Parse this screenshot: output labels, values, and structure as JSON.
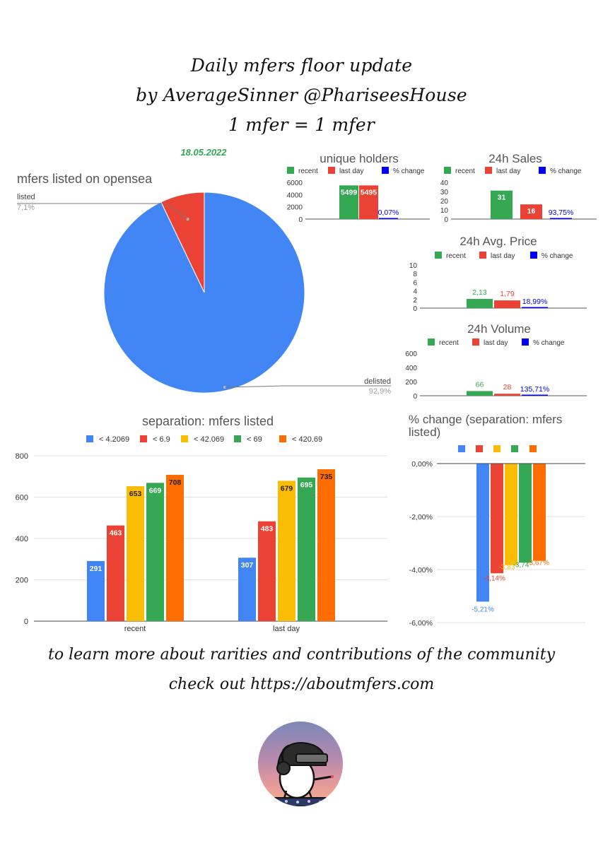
{
  "header": {
    "line1": "Daily mfers floor update",
    "line2": "by AverageSinner @PhariseesHouse",
    "line3": "1 mfer = 1 mfer"
  },
  "date": "18.05.2022",
  "footer": {
    "line1": "to learn more about rarities and contributions of the community",
    "line2": "check out https://aboutmfers.com"
  },
  "colors": {
    "blue": "#4285f4",
    "red": "#ea4335",
    "yellow": "#fbbc04",
    "green": "#34a853",
    "orange": "#ff6d01",
    "pct_blue": "#0000ee",
    "grey_text": "#9e9e9e"
  },
  "chart_data": [
    {
      "id": "pie",
      "type": "pie",
      "title": "mfers listed on opensea",
      "slices": [
        {
          "label": "listed",
          "pct_label": "7,1%",
          "value": 7.1,
          "color": "#ea4335"
        },
        {
          "label": "delisted",
          "pct_label": "92,9%",
          "value": 92.9,
          "color": "#4285f4"
        }
      ]
    },
    {
      "id": "holders",
      "type": "bar",
      "title": "unique holders",
      "legend": [
        "recent",
        "last day",
        "% change"
      ],
      "yticks": [
        0,
        2000,
        4000,
        6000
      ],
      "ylim": [
        0,
        6000
      ],
      "values": [
        5499,
        5495,
        0.07
      ],
      "labels": [
        "5499",
        "5495",
        "0,07%"
      ],
      "colors": [
        "#34a853",
        "#ea4335",
        "#0000ee"
      ]
    },
    {
      "id": "sales",
      "type": "bar",
      "title": "24h Sales",
      "legend": [
        "recent",
        "last day",
        "% change"
      ],
      "yticks": [
        0,
        10,
        20,
        30,
        40
      ],
      "ylim": [
        0,
        40
      ],
      "values": [
        31,
        16,
        0.9375
      ],
      "labels": [
        "31",
        "16",
        "93,75%"
      ],
      "colors": [
        "#34a853",
        "#ea4335",
        "#0000ee"
      ]
    },
    {
      "id": "avgprice",
      "type": "bar",
      "title": "24h Avg. Price",
      "legend": [
        "recent",
        "last day",
        "% change"
      ],
      "yticks": [
        0,
        2,
        4,
        6,
        8,
        10
      ],
      "ylim": [
        0,
        10
      ],
      "values": [
        2.13,
        1.79,
        0.1899
      ],
      "labels": [
        "2,13",
        "1,79",
        "18,99%"
      ],
      "colors": [
        "#34a853",
        "#ea4335",
        "#0000ee"
      ]
    },
    {
      "id": "volume",
      "type": "bar",
      "title": "24h Volume",
      "legend": [
        "recent",
        "last day",
        "% change"
      ],
      "yticks": [
        0,
        200,
        400,
        600
      ],
      "ylim": [
        0,
        600
      ],
      "values": [
        66,
        28,
        1.3571
      ],
      "labels": [
        "66",
        "28",
        "135,71%"
      ],
      "colors": [
        "#34a853",
        "#ea4335",
        "#0000ee"
      ]
    },
    {
      "id": "separation",
      "type": "bar",
      "title": "separation: mfers listed",
      "categories": [
        "recent",
        "last day"
      ],
      "yticks": [
        0,
        200,
        400,
        600,
        800
      ],
      "ylim": [
        0,
        800
      ],
      "series": [
        {
          "name": "< 4.2069",
          "values": [
            291,
            307
          ],
          "color": "#4285f4"
        },
        {
          "name": "< 6.9",
          "values": [
            463,
            483
          ],
          "color": "#ea4335"
        },
        {
          "name": "< 42.069",
          "values": [
            653,
            679
          ],
          "color": "#fbbc04"
        },
        {
          "name": "< 69",
          "values": [
            669,
            695
          ],
          "color": "#34a853"
        },
        {
          "name": "< 420.69",
          "values": [
            708,
            735
          ],
          "color": "#ff6d01"
        }
      ]
    },
    {
      "id": "pctchange",
      "type": "bar",
      "title_line1": "% change (separation: mfers",
      "title_line2": "listed)",
      "yticks": [
        0,
        -2,
        -4,
        -6
      ],
      "ytick_labels": [
        "0,00%",
        "-2,00%",
        "-4,00%",
        "-6,00%"
      ],
      "ylim": [
        -6,
        0
      ],
      "values": [
        -5.21,
        -4.14,
        -3.83,
        -3.74,
        -3.67
      ],
      "labels": [
        "-5,21%",
        "-4,14%",
        "-3,83",
        "-3,74",
        "-3,67%"
      ],
      "colors": [
        "#4285f4",
        "#ea4335",
        "#fbbc04",
        "#34a853",
        "#ff6d01"
      ]
    }
  ],
  "avatar": {
    "icon": "mfer-avatar-icon"
  }
}
